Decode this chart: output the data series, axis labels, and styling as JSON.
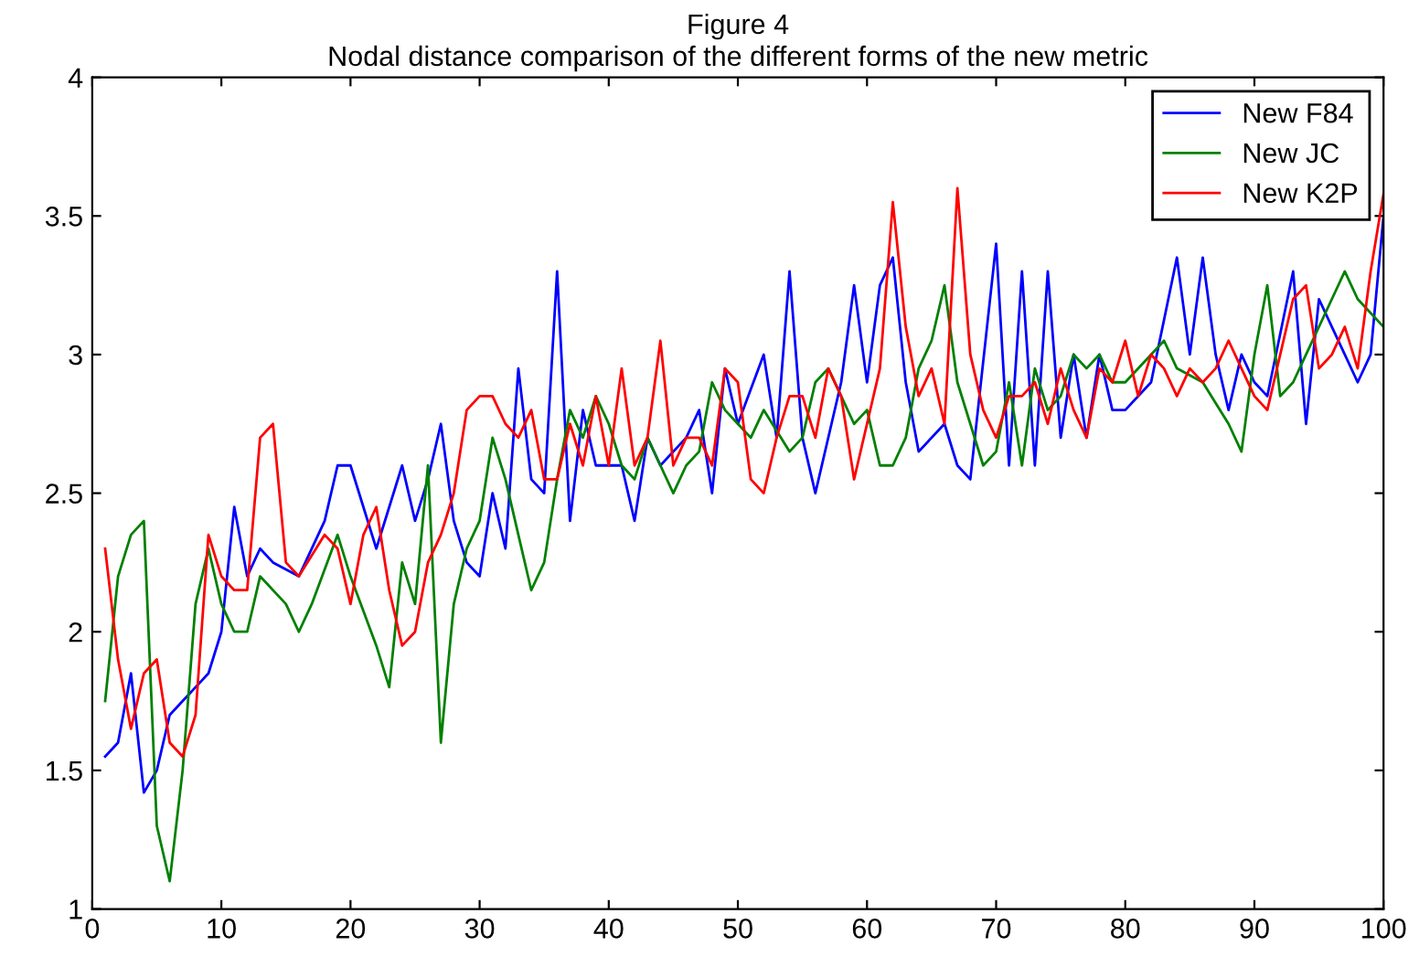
{
  "chart_data": {
    "type": "line",
    "title": "Figure 4",
    "subtitle": "Nodal distance comparison of the different forms of the new metric",
    "xlim": [
      0,
      100
    ],
    "xticks": [
      0,
      10,
      20,
      30,
      40,
      50,
      60,
      70,
      80,
      90,
      100
    ],
    "ylim": [
      1,
      4
    ],
    "yticks": [
      1,
      1.5,
      2,
      2.5,
      3,
      3.5,
      4
    ],
    "grid": false,
    "legend": "top right",
    "marker": "none",
    "line_style": "solid",
    "series": [
      {
        "name": "New F84",
        "color": "#0000ff",
        "x": [
          1,
          2,
          3,
          4,
          5,
          6,
          7,
          8,
          9,
          10,
          11,
          12,
          13,
          14,
          16,
          18,
          19,
          20,
          22,
          24,
          25,
          26,
          27,
          28,
          29,
          30,
          31,
          32,
          33,
          34,
          35,
          36,
          37,
          38,
          39,
          41,
          42,
          43,
          44,
          46,
          47,
          48,
          49,
          50,
          52,
          53,
          54,
          55,
          56,
          58,
          59,
          60,
          61,
          62,
          63,
          64,
          66,
          67,
          68,
          70,
          71,
          72,
          73,
          74,
          75,
          76,
          77,
          78,
          79,
          80,
          82,
          84,
          85,
          86,
          87,
          88,
          89,
          90,
          91,
          93,
          94,
          95,
          96,
          97,
          98,
          99,
          100
        ],
        "values": [
          1.55,
          1.6,
          1.85,
          1.42,
          1.5,
          1.7,
          1.75,
          1.8,
          1.85,
          2.0,
          2.45,
          2.2,
          2.3,
          2.25,
          2.2,
          2.4,
          2.6,
          2.6,
          2.3,
          2.6,
          2.4,
          2.55,
          2.75,
          2.4,
          2.25,
          2.2,
          2.5,
          2.3,
          2.95,
          2.55,
          2.5,
          3.3,
          2.4,
          2.8,
          2.6,
          2.6,
          2.4,
          2.7,
          2.6,
          2.7,
          2.8,
          2.5,
          2.95,
          2.75,
          3.0,
          2.7,
          3.3,
          2.7,
          2.5,
          2.9,
          3.25,
          2.9,
          3.25,
          3.35,
          2.9,
          2.65,
          2.75,
          2.6,
          2.55,
          3.4,
          2.6,
          3.3,
          2.6,
          3.3,
          2.7,
          3.0,
          2.7,
          3.0,
          2.8,
          2.8,
          2.9,
          3.35,
          3.0,
          3.35,
          3.0,
          2.8,
          3.0,
          2.9,
          2.85,
          3.3,
          2.75,
          3.2,
          3.1,
          3.0,
          2.9,
          3.0,
          3.5
        ]
      },
      {
        "name": "New JC",
        "color": "#008000",
        "x": [
          1,
          2,
          3,
          4,
          5,
          6,
          7,
          8,
          9,
          10,
          11,
          12,
          13,
          15,
          16,
          17,
          19,
          20,
          22,
          23,
          24,
          25,
          26,
          27,
          28,
          29,
          30,
          31,
          32,
          33,
          34,
          35,
          36,
          37,
          38,
          39,
          40,
          41,
          42,
          43,
          44,
          45,
          46,
          47,
          48,
          49,
          50,
          51,
          52,
          54,
          55,
          56,
          57,
          58,
          59,
          60,
          61,
          62,
          63,
          64,
          65,
          66,
          67,
          68,
          69,
          70,
          71,
          72,
          73,
          74,
          75,
          76,
          77,
          78,
          79,
          80,
          82,
          83,
          84,
          86,
          88,
          89,
          90,
          91,
          92,
          93,
          94,
          96,
          97,
          98,
          100
        ],
        "values": [
          1.75,
          2.2,
          2.35,
          2.4,
          1.3,
          1.1,
          1.5,
          2.1,
          2.3,
          2.1,
          2.0,
          2.0,
          2.2,
          2.1,
          2.0,
          2.1,
          2.35,
          2.2,
          1.95,
          1.8,
          2.25,
          2.1,
          2.6,
          1.6,
          2.1,
          2.3,
          2.4,
          2.7,
          2.55,
          2.35,
          2.15,
          2.25,
          2.55,
          2.8,
          2.7,
          2.85,
          2.75,
          2.6,
          2.55,
          2.7,
          2.6,
          2.5,
          2.6,
          2.65,
          2.9,
          2.8,
          2.75,
          2.7,
          2.8,
          2.65,
          2.7,
          2.9,
          2.95,
          2.85,
          2.75,
          2.8,
          2.6,
          2.6,
          2.7,
          2.95,
          3.05,
          3.25,
          2.9,
          2.75,
          2.6,
          2.65,
          2.9,
          2.6,
          2.95,
          2.8,
          2.85,
          3.0,
          2.95,
          3.0,
          2.9,
          2.9,
          3.0,
          3.05,
          2.95,
          2.9,
          2.75,
          2.65,
          3.0,
          3.25,
          2.85,
          2.9,
          3.0,
          3.2,
          3.3,
          3.2,
          3.1
        ]
      },
      {
        "name": "New K2P",
        "color": "#ff0000",
        "x": [
          1,
          2,
          3,
          4,
          5,
          6,
          7,
          8,
          9,
          10,
          11,
          12,
          13,
          14,
          15,
          16,
          18,
          19,
          20,
          21,
          22,
          23,
          24,
          25,
          26,
          27,
          28,
          29,
          30,
          31,
          32,
          33,
          34,
          35,
          36,
          37,
          38,
          39,
          40,
          41,
          42,
          43,
          44,
          45,
          46,
          47,
          48,
          49,
          50,
          51,
          52,
          53,
          54,
          55,
          56,
          57,
          58,
          59,
          60,
          61,
          62,
          63,
          64,
          65,
          66,
          67,
          68,
          69,
          70,
          71,
          72,
          73,
          74,
          75,
          76,
          77,
          78,
          79,
          80,
          81,
          82,
          83,
          84,
          85,
          86,
          87,
          88,
          89,
          90,
          91,
          92,
          93,
          94,
          95,
          96,
          97,
          98,
          99,
          100
        ],
        "values": [
          2.3,
          1.9,
          1.65,
          1.85,
          1.9,
          1.6,
          1.55,
          1.7,
          2.35,
          2.2,
          2.15,
          2.15,
          2.7,
          2.75,
          2.25,
          2.2,
          2.35,
          2.3,
          2.1,
          2.35,
          2.45,
          2.15,
          1.95,
          2.0,
          2.25,
          2.35,
          2.5,
          2.8,
          2.85,
          2.85,
          2.75,
          2.7,
          2.8,
          2.55,
          2.55,
          2.75,
          2.6,
          2.85,
          2.6,
          2.95,
          2.6,
          2.7,
          3.05,
          2.6,
          2.7,
          2.7,
          2.6,
          2.95,
          2.9,
          2.55,
          2.5,
          2.7,
          2.85,
          2.85,
          2.7,
          2.95,
          2.85,
          2.55,
          2.75,
          2.95,
          3.55,
          3.1,
          2.85,
          2.95,
          2.75,
          3.6,
          3.0,
          2.8,
          2.7,
          2.85,
          2.85,
          2.9,
          2.75,
          2.95,
          2.8,
          2.7,
          2.95,
          2.9,
          3.05,
          2.85,
          3.0,
          2.95,
          2.85,
          2.95,
          2.9,
          2.95,
          3.05,
          2.95,
          2.85,
          2.8,
          3.0,
          3.2,
          3.25,
          2.95,
          3.0,
          3.1,
          2.95,
          3.3,
          3.58
        ]
      }
    ]
  }
}
